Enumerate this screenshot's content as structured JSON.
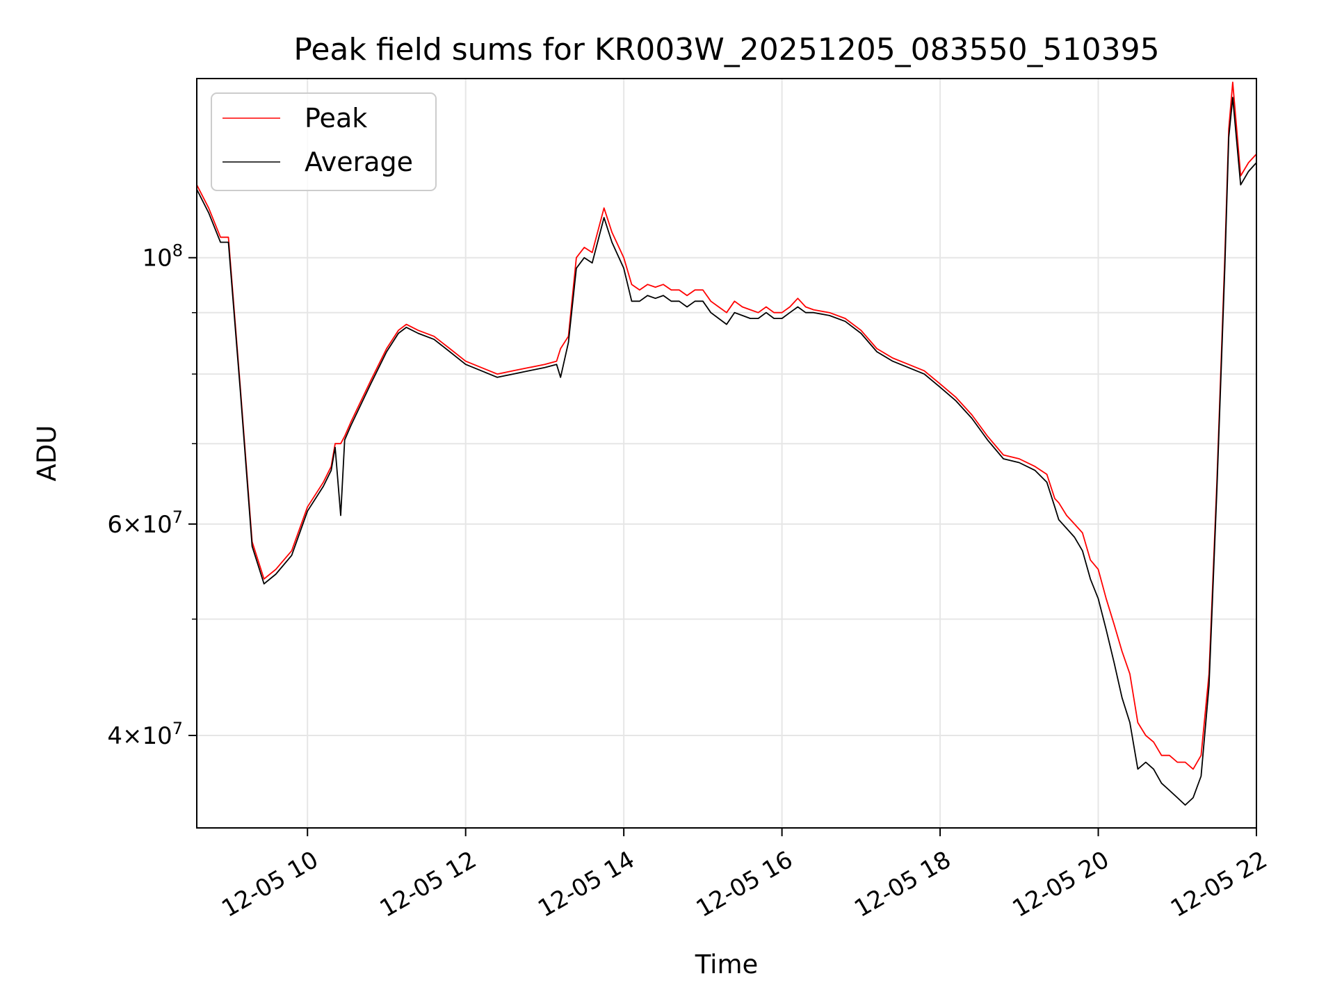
{
  "chart_data": {
    "type": "line",
    "title": "Peak field sums for KR003W_20251205_083550_510395",
    "xlabel": "Time",
    "ylabel": "ADU",
    "yscale": "log",
    "xlim_hours": [
      8.6,
      22.0
    ],
    "ylim": [
      33500000,
      141000000
    ],
    "x_ticks": [
      {
        "hour": 10,
        "label": "12-05 10"
      },
      {
        "hour": 12,
        "label": "12-05 12"
      },
      {
        "hour": 14,
        "label": "12-05 14"
      },
      {
        "hour": 16,
        "label": "12-05 16"
      },
      {
        "hour": 18,
        "label": "12-05 18"
      },
      {
        "hour": 20,
        "label": "12-05 20"
      },
      {
        "hour": 22,
        "label": "12-05 22"
      }
    ],
    "y_major_ticks": [
      {
        "value": 40000000,
        "mant": "4",
        "exp": "7"
      },
      {
        "value": 60000000,
        "mant": "6",
        "exp": "7"
      },
      {
        "value": 100000000,
        "mant": "",
        "exp": "8"
      }
    ],
    "y_minor_ticks": [
      50000000,
      70000000,
      80000000,
      90000000
    ],
    "legend": {
      "position": "upper left",
      "entries": [
        "Peak",
        "Average"
      ]
    },
    "series": [
      {
        "name": "Peak",
        "color": "#ff0000",
        "x_hours": [
          8.6,
          8.75,
          8.9,
          9.0,
          9.15,
          9.3,
          9.45,
          9.6,
          9.8,
          10.0,
          10.2,
          10.3,
          10.35,
          10.42,
          10.47,
          10.55,
          10.8,
          11.0,
          11.15,
          11.25,
          11.4,
          11.6,
          11.8,
          12.0,
          12.2,
          12.4,
          12.6,
          12.8,
          13.0,
          13.15,
          13.2,
          13.3,
          13.4,
          13.5,
          13.6,
          13.75,
          13.85,
          14.0,
          14.1,
          14.2,
          14.3,
          14.4,
          14.5,
          14.6,
          14.7,
          14.8,
          14.9,
          15.0,
          15.1,
          15.2,
          15.3,
          15.4,
          15.5,
          15.6,
          15.7,
          15.8,
          15.9,
          16.0,
          16.1,
          16.2,
          16.3,
          16.4,
          16.6,
          16.8,
          17.0,
          17.2,
          17.4,
          17.6,
          17.8,
          18.0,
          18.2,
          18.4,
          18.6,
          18.8,
          19.0,
          19.2,
          19.35,
          19.45,
          19.5,
          19.6,
          19.7,
          19.8,
          19.9,
          20.0,
          20.1,
          20.2,
          20.3,
          20.4,
          20.5,
          20.6,
          20.7,
          20.8,
          20.9,
          21.0,
          21.1,
          21.2,
          21.3,
          21.4,
          21.5,
          21.6,
          21.65,
          21.7,
          21.8,
          21.9,
          22.0
        ],
        "values": [
          115000000,
          110000000,
          104000000,
          104000000,
          78000000,
          58000000,
          54000000,
          55000000,
          57000000,
          62000000,
          65000000,
          67000000,
          70000000,
          70000000,
          71000000,
          73000000,
          79000000,
          84000000,
          87000000,
          88000000,
          87000000,
          86000000,
          84000000,
          82000000,
          81000000,
          80000000,
          80500000,
          81000000,
          81500000,
          82000000,
          84000000,
          86000000,
          100000000,
          102000000,
          101000000,
          110000000,
          105000000,
          100000000,
          95000000,
          94000000,
          95000000,
          94500000,
          95000000,
          94000000,
          94000000,
          93000000,
          94000000,
          94000000,
          92000000,
          91000000,
          90000000,
          92000000,
          91000000,
          90500000,
          90000000,
          91000000,
          90000000,
          90000000,
          91000000,
          92500000,
          91000000,
          90500000,
          90000000,
          89000000,
          87000000,
          84000000,
          82500000,
          81500000,
          80500000,
          78500000,
          76500000,
          74000000,
          71000000,
          68500000,
          68000000,
          67000000,
          66000000,
          63000000,
          62500000,
          61000000,
          60000000,
          59000000,
          56000000,
          55000000,
          52000000,
          49500000,
          47000000,
          45000000,
          41000000,
          40000000,
          39500000,
          38500000,
          38500000,
          38000000,
          38000000,
          37500000,
          38500000,
          45000000,
          65000000,
          100000000,
          128000000,
          140000000,
          117000000,
          120000000,
          122000000
        ]
      },
      {
        "name": "Average",
        "color": "#000000",
        "x_hours": [
          8.6,
          8.75,
          8.9,
          9.0,
          9.15,
          9.3,
          9.45,
          9.6,
          9.8,
          10.0,
          10.2,
          10.3,
          10.35,
          10.42,
          10.47,
          10.55,
          10.8,
          11.0,
          11.15,
          11.25,
          11.4,
          11.6,
          11.8,
          12.0,
          12.2,
          12.4,
          12.6,
          12.8,
          13.0,
          13.15,
          13.2,
          13.3,
          13.4,
          13.5,
          13.6,
          13.75,
          13.85,
          14.0,
          14.1,
          14.2,
          14.3,
          14.4,
          14.5,
          14.6,
          14.7,
          14.8,
          14.9,
          15.0,
          15.1,
          15.2,
          15.3,
          15.4,
          15.5,
          15.6,
          15.7,
          15.8,
          15.9,
          16.0,
          16.1,
          16.2,
          16.3,
          16.4,
          16.6,
          16.8,
          17.0,
          17.2,
          17.4,
          17.6,
          17.8,
          18.0,
          18.2,
          18.4,
          18.6,
          18.8,
          19.0,
          19.2,
          19.35,
          19.45,
          19.5,
          19.6,
          19.7,
          19.8,
          19.9,
          20.0,
          20.1,
          20.2,
          20.3,
          20.4,
          20.5,
          20.6,
          20.7,
          20.8,
          20.9,
          21.0,
          21.1,
          21.2,
          21.3,
          21.4,
          21.5,
          21.6,
          21.65,
          21.7,
          21.8,
          21.9,
          22.0
        ],
        "values": [
          114000000,
          109000000,
          103000000,
          103000000,
          77500000,
          57500000,
          53500000,
          54500000,
          56500000,
          61500000,
          64500000,
          66500000,
          69500000,
          61000000,
          70500000,
          72500000,
          78500000,
          83500000,
          86500000,
          87500000,
          86500000,
          85500000,
          83500000,
          81500000,
          80500000,
          79500000,
          80000000,
          80500000,
          81000000,
          81500000,
          79500000,
          85000000,
          98000000,
          100000000,
          99000000,
          108000000,
          103000000,
          98000000,
          92000000,
          92000000,
          93000000,
          92500000,
          93000000,
          92000000,
          92000000,
          91000000,
          92000000,
          92000000,
          90000000,
          89000000,
          88000000,
          90000000,
          89500000,
          89000000,
          89000000,
          90000000,
          89000000,
          89000000,
          90000000,
          91000000,
          90000000,
          90000000,
          89500000,
          88500000,
          86500000,
          83500000,
          82000000,
          81000000,
          80000000,
          78000000,
          76000000,
          73500000,
          70500000,
          68000000,
          67500000,
          66500000,
          65000000,
          62000000,
          60500000,
          59500000,
          58500000,
          57000000,
          54000000,
          52000000,
          49000000,
          46000000,
          43000000,
          41000000,
          37500000,
          38000000,
          37500000,
          36500000,
          36000000,
          35500000,
          35000000,
          35500000,
          37000000,
          44000000,
          64000000,
          98000000,
          126000000,
          136000000,
          115000000,
          118000000,
          120000000
        ]
      }
    ]
  }
}
